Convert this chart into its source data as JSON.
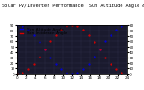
{
  "title": "Solar PV/Inverter Performance  Sun Altitude Angle & Sun Incidence Angle on PV Panels",
  "blue_label": "Sun Altitude Angle",
  "red_label": "Sun Incidence Angle",
  "x_start": 0,
  "x_end": 24,
  "y_min": 0,
  "y_max": 90,
  "blue_color": "#0000dd",
  "red_color": "#dd0000",
  "bg_color": "#ffffff",
  "plot_bg": "#1a1a2e",
  "grid_color": "#555577",
  "title_fontsize": 3.8,
  "tick_fontsize": 3.0,
  "legend_fontsize": 3.2,
  "x_ticks": [
    0,
    2,
    4,
    6,
    8,
    10,
    12,
    14,
    16,
    18,
    20,
    22,
    24
  ],
  "y_ticks": [
    0,
    10,
    20,
    30,
    40,
    50,
    60,
    70,
    80,
    90
  ]
}
